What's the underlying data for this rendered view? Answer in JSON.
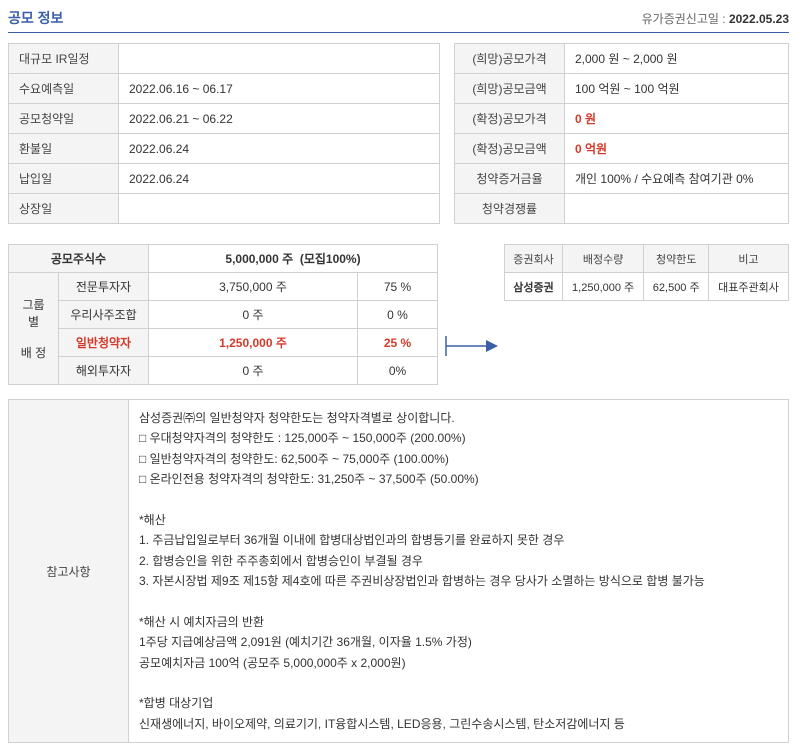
{
  "header": {
    "title": "공모 정보",
    "filing_label": "유가증권신고일 : ",
    "filing_date": "2022.05.23"
  },
  "schedule": {
    "rows": [
      {
        "label": "대규모 IR일정",
        "value": ""
      },
      {
        "label": "수요예측일",
        "value": "2022.06.16 ~ 06.17"
      },
      {
        "label": "공모청약일",
        "value": "2022.06.21 ~ 06.22"
      },
      {
        "label": "환불일",
        "value": "2022.06.24"
      },
      {
        "label": "납입일",
        "value": "2022.06.24"
      },
      {
        "label": "상장일",
        "value": ""
      }
    ]
  },
  "offering": {
    "rows": [
      {
        "label": "(희망)공모가격",
        "value": "2,000 원 ~ 2,000 원",
        "emph": false
      },
      {
        "label": "(희망)공모금액",
        "value": "100 억원  ~ 100 억원",
        "emph": false
      },
      {
        "label": "(확정)공모가격",
        "value": "0 원",
        "emph": true
      },
      {
        "label": "(확정)공모금액",
        "value": "0 억원",
        "emph": true
      },
      {
        "label": "청약증거금율",
        "value": "개인 100% / 수요예측 참여기관 0%",
        "emph": false
      },
      {
        "label": "청약경쟁률",
        "value": "",
        "emph": false
      }
    ]
  },
  "shares": {
    "total_label": "공모주식수",
    "total_shares": "5,000,000  주",
    "total_ratio": "(모집100%)",
    "group_label_1": "그룹별",
    "group_label_2": "배  정",
    "rows": [
      {
        "label": "전문투자자",
        "shares": "3,750,000 주",
        "pct": "75 %",
        "emph": false
      },
      {
        "label": "우리사주조합",
        "shares": "0 주",
        "pct": "0 %",
        "emph": false
      },
      {
        "label": "일반청약자",
        "shares": "1,250,000 주",
        "pct": "25 %",
        "emph": true
      },
      {
        "label": "해외투자자",
        "shares": "0 주",
        "pct": "0%",
        "emph": false
      }
    ]
  },
  "brokers": {
    "headers": [
      "증권회사",
      "배정수량",
      "청약한도",
      "비고"
    ],
    "rows": [
      {
        "firm": "삼성증권",
        "alloc": "1,250,000 주",
        "limit": "62,500 주",
        "remark": "대표주관회사"
      }
    ]
  },
  "notes": {
    "label": "참고사항",
    "body": "삼성증권㈜의 일반청약자 청약한도는 청약자격별로 상이합니다.\n□ 우대청약자격의 청약한도 : 125,000주 ~ 150,000주 (200.00%)\n□ 일반청약자격의 청약한도: 62,500주 ~ 75,000주 (100.00%)\n□ 온라인전용 청약자격의 청약한도: 31,250주 ~ 37,500주 (50.00%)\n\n*해산\n1. 주금납입일로부터 36개월 이내에 합병대상법인과의 합병등기를 완료하지 못한 경우\n2. 합병승인을 위한 주주총회에서 합병승인이 부결될 경우\n3. 자본시장법 제9조 제15항 제4호에 따른 주권비상장법인과 합병하는 경우 당사가 소멸하는 방식으로 합병 불가능\n\n*해산 시 예치자금의 반환\n1주당 지급예상금액 2,091원 (예치기간 36개월, 이자율 1.5% 가정)\n공모예치자금 100억 (공모주 5,000,000주 x 2,000원)\n\n*합병 대상기업\n신재생에너지, 바이오제약, 의료기기, IT융합시스템, LED응용, 그린수송시스템, 탄소저감에너지 등"
  },
  "colors": {
    "accent": "#3a5ea8",
    "border": "#d0d0d0",
    "header_bg": "#f4f4f4",
    "emph": "#d43a2a",
    "arrow": "#3a5ea8"
  }
}
